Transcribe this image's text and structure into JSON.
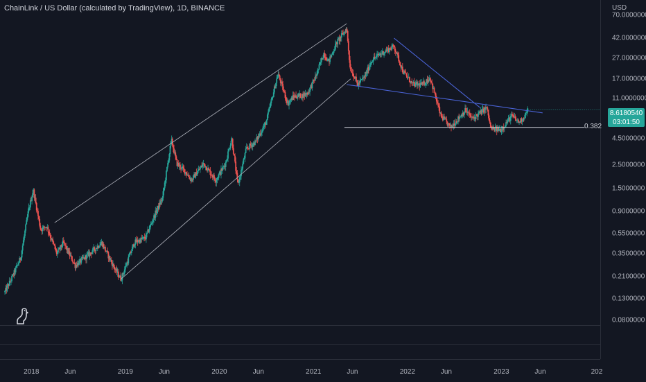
{
  "header": {
    "title": "ChainLink / US Dollar (calculated by TradingView), 1D, BINANCE"
  },
  "price_axis": {
    "currency": "USD",
    "ticks": [
      "70.0000000",
      "42.0000000",
      "27.0000000",
      "17.0000000",
      "11.0000000",
      "4.5000000",
      "2.5000000",
      "1.5000000",
      "0.9000000",
      "0.5500000",
      "0.3500000",
      "0.2100000",
      "0.1300000",
      "0.0800000"
    ]
  },
  "time_axis": {
    "ticks": [
      "2018",
      "Jun",
      "2019",
      "Jun",
      "2020",
      "Jun",
      "2021",
      "Jun",
      "2022",
      "Jun",
      "2023",
      "Jun",
      "202"
    ]
  },
  "last_price": {
    "price": "8.6180540",
    "countdown": "03:01:50",
    "color": "#26a69a"
  },
  "fib_level": {
    "label": "0.382",
    "value": 5.8
  },
  "colors": {
    "up": "#26a69a",
    "down": "#ef5350",
    "background": "#131722",
    "trendline_blue": "#4a63d6",
    "channel_line": "#b2b5be"
  },
  "chart_data": {
    "type": "line",
    "title": "ChainLink / US Dollar (calculated by TradingView), 1D, BINANCE",
    "scale": "log",
    "ylabel": "USD",
    "ylim": [
      0.072,
      98
    ],
    "x_range": [
      "2017-09-01",
      "2024-01-20"
    ],
    "series": [
      {
        "name": "ChainLink / US Dollar",
        "x": [
          "2017-09-20",
          "2017-10-15",
          "2017-11-20",
          "2017-12-20",
          "2018-01-08",
          "2018-02-06",
          "2018-03-01",
          "2018-04-10",
          "2018-05-05",
          "2018-06-20",
          "2018-08-14",
          "2018-10-01",
          "2018-11-25",
          "2018-12-15",
          "2019-02-05",
          "2019-03-20",
          "2019-05-01",
          "2019-05-25",
          "2019-06-29",
          "2019-07-20",
          "2019-08-20",
          "2019-09-15",
          "2019-11-01",
          "2019-12-18",
          "2020-01-25",
          "2020-02-18",
          "2020-03-13",
          "2020-04-15",
          "2020-05-20",
          "2020-07-01",
          "2020-08-16",
          "2020-09-23",
          "2020-10-15",
          "2020-11-20",
          "2020-12-10",
          "2021-01-10",
          "2021-02-10",
          "2021-03-01",
          "2021-04-01",
          "2021-05-10",
          "2021-05-23",
          "2021-06-22",
          "2021-07-20",
          "2021-08-16",
          "2021-09-21",
          "2021-11-10",
          "2021-12-15",
          "2022-01-22",
          "2022-03-01",
          "2022-03-30",
          "2022-05-10",
          "2022-06-18",
          "2022-08-14",
          "2022-09-10",
          "2022-11-05",
          "2022-11-21",
          "2022-12-30",
          "2023-02-10",
          "2023-03-10",
          "2023-03-28",
          "2023-04-14"
        ],
        "values": [
          0.15,
          0.2,
          0.32,
          0.9,
          1.45,
          0.6,
          0.65,
          0.35,
          0.45,
          0.27,
          0.35,
          0.45,
          0.24,
          0.2,
          0.45,
          0.5,
          0.9,
          1.2,
          4.4,
          2.6,
          2.2,
          1.8,
          2.6,
          1.8,
          2.6,
          4.6,
          1.6,
          3.6,
          4.2,
          6.5,
          19.0,
          9.8,
          11.5,
          11.8,
          12.5,
          18.0,
          30.0,
          25.0,
          38.0,
          52.0,
          22.0,
          15.0,
          18.0,
          26.0,
          30.0,
          35.0,
          20.0,
          15.0,
          15.0,
          17.5,
          7.5,
          5.8,
          8.5,
          7.0,
          9.0,
          5.6,
          5.5,
          7.5,
          6.5,
          7.2,
          8.62
        ]
      }
    ],
    "annotations": [
      {
        "type": "horizontal",
        "label": "0.382",
        "y": 5.8
      },
      {
        "type": "trendline",
        "name": "channel upper",
        "from": [
          "2018-04-01",
          0.7
        ],
        "to": [
          "2021-05-10",
          58.0
        ]
      },
      {
        "type": "trendline",
        "name": "channel lower",
        "from": [
          "2018-12-15",
          0.2
        ],
        "to": [
          "2021-05-25",
          17.0
        ]
      },
      {
        "type": "trendline",
        "name": "descending resistance",
        "from": [
          "2021-11-10",
          42.0
        ],
        "to": [
          "2022-10-10",
          9.0
        ]
      },
      {
        "type": "trendline",
        "name": "descending support",
        "from": [
          "2021-05-10",
          15.0
        ],
        "to": [
          "2023-06-10",
          8.0
        ]
      }
    ],
    "grid": false,
    "legend": "none"
  }
}
